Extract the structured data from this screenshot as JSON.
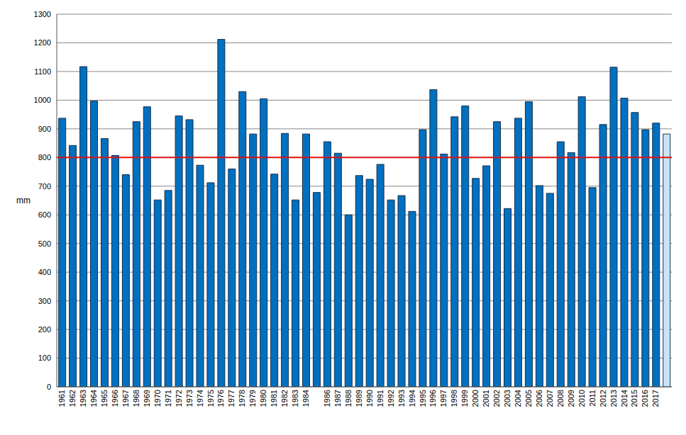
{
  "chart_data": {
    "type": "bar",
    "y_label": "mm",
    "categories": [
      "1961",
      "1962",
      "1963",
      "1964",
      "1965",
      "1966",
      "1967",
      "1968",
      "1969",
      "1970",
      "1971",
      "1972",
      "1973",
      "1974",
      "1975",
      "1976",
      "1977",
      "1978",
      "1979",
      "1980",
      "1981",
      "1982",
      "1983",
      "1984",
      null,
      "1986",
      "1987",
      "1988",
      "1989",
      "1990",
      "1991",
      "1992",
      "1993",
      "1994",
      "1995",
      "1996",
      "1997",
      "1998",
      "1999",
      "2000",
      "2001",
      "2002",
      "2003",
      "2004",
      "2005",
      "2006",
      "2007",
      "2008",
      "2009",
      "2010",
      "2011",
      "2012",
      "2013",
      "2014",
      "2015",
      "2016",
      "2017",
      null
    ],
    "values": [
      937,
      842,
      1117,
      997,
      866,
      807,
      740,
      925,
      977,
      652,
      685,
      945,
      932,
      773,
      712,
      1212,
      760,
      1030,
      882,
      1005,
      742,
      884,
      652,
      882,
      678,
      855,
      815,
      600,
      737,
      724,
      776,
      652,
      667,
      612,
      897,
      1037,
      812,
      942,
      980,
      727,
      771,
      925,
      622,
      937,
      995,
      702,
      675,
      855,
      817,
      1012,
      695,
      915,
      1115,
      1007,
      957,
      897,
      920,
      882
    ],
    "colors": [
      "#0070c0",
      "#0070c0",
      "#0070c0",
      "#0070c0",
      "#0070c0",
      "#0070c0",
      "#0070c0",
      "#0070c0",
      "#0070c0",
      "#0070c0",
      "#0070c0",
      "#0070c0",
      "#0070c0",
      "#0070c0",
      "#0070c0",
      "#0070c0",
      "#0070c0",
      "#0070c0",
      "#0070c0",
      "#0070c0",
      "#0070c0",
      "#0070c0",
      "#0070c0",
      "#0070c0",
      "#0070c0",
      "#0070c0",
      "#0070c0",
      "#0070c0",
      "#0070c0",
      "#0070c0",
      "#0070c0",
      "#0070c0",
      "#0070c0",
      "#0070c0",
      "#0070c0",
      "#0070c0",
      "#0070c0",
      "#0070c0",
      "#0070c0",
      "#0070c0",
      "#0070c0",
      "#0070c0",
      "#0070c0",
      "#0070c0",
      "#0070c0",
      "#0070c0",
      "#0070c0",
      "#0070c0",
      "#0070c0",
      "#0070c0",
      "#0070c0",
      "#0070c0",
      "#0070c0",
      "#0070c0",
      "#0070c0",
      "#0070c0",
      "#0070c0",
      "#c9e4f6"
    ],
    "reference_line": 800,
    "reference_line_color": "#e01010",
    "ylim": [
      0,
      1300
    ],
    "yticks": [
      0,
      100,
      200,
      300,
      400,
      500,
      600,
      700,
      800,
      900,
      1000,
      1100,
      1200,
      1300
    ],
    "grid": true
  }
}
